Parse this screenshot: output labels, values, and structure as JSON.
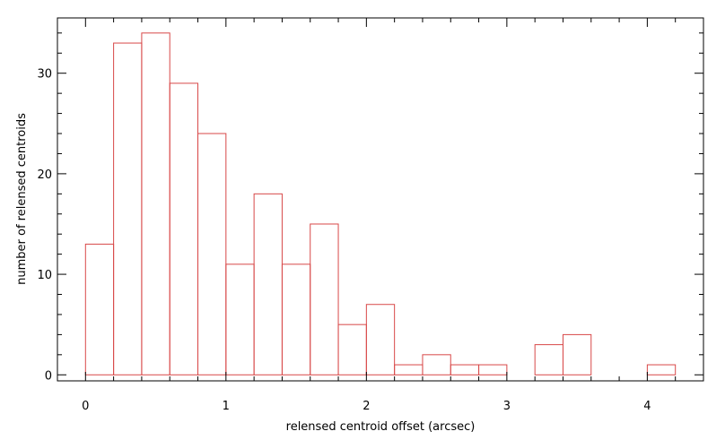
{
  "chart_data": {
    "type": "bar",
    "style": "histogram",
    "bin_width": 0.2,
    "bins": [
      {
        "x0": 0.0,
        "x1": 0.2,
        "count": 13
      },
      {
        "x0": 0.2,
        "x1": 0.4,
        "count": 33
      },
      {
        "x0": 0.4,
        "x1": 0.6,
        "count": 34
      },
      {
        "x0": 0.6,
        "x1": 0.8,
        "count": 29
      },
      {
        "x0": 0.8,
        "x1": 1.0,
        "count": 24
      },
      {
        "x0": 1.0,
        "x1": 1.2,
        "count": 11
      },
      {
        "x0": 1.2,
        "x1": 1.4,
        "count": 18
      },
      {
        "x0": 1.4,
        "x1": 1.6,
        "count": 11
      },
      {
        "x0": 1.6,
        "x1": 1.8,
        "count": 15
      },
      {
        "x0": 1.8,
        "x1": 2.0,
        "count": 5
      },
      {
        "x0": 2.0,
        "x1": 2.2,
        "count": 7
      },
      {
        "x0": 2.2,
        "x1": 2.4,
        "count": 1
      },
      {
        "x0": 2.4,
        "x1": 2.6,
        "count": 2
      },
      {
        "x0": 2.6,
        "x1": 2.8,
        "count": 1
      },
      {
        "x0": 2.8,
        "x1": 3.0,
        "count": 1
      },
      {
        "x0": 3.0,
        "x1": 3.2,
        "count": 0
      },
      {
        "x0": 3.2,
        "x1": 3.4,
        "count": 3
      },
      {
        "x0": 3.4,
        "x1": 3.6,
        "count": 4
      },
      {
        "x0": 3.6,
        "x1": 3.8,
        "count": 0
      },
      {
        "x0": 3.8,
        "x1": 4.0,
        "count": 0
      },
      {
        "x0": 4.0,
        "x1": 4.2,
        "count": 1
      }
    ],
    "xlabel": "relensed centroid offset (arcsec)",
    "ylabel": "number of relensed centroids",
    "xlim": [
      -0.2,
      4.4
    ],
    "ylim": [
      -0.6,
      35.5
    ],
    "xticks": [
      "0",
      "1",
      "2",
      "3",
      "4"
    ],
    "yticks": [
      "0",
      "10",
      "20",
      "30"
    ],
    "grid": false,
    "bar_color": "#d84848",
    "axis_color": "#000000"
  }
}
